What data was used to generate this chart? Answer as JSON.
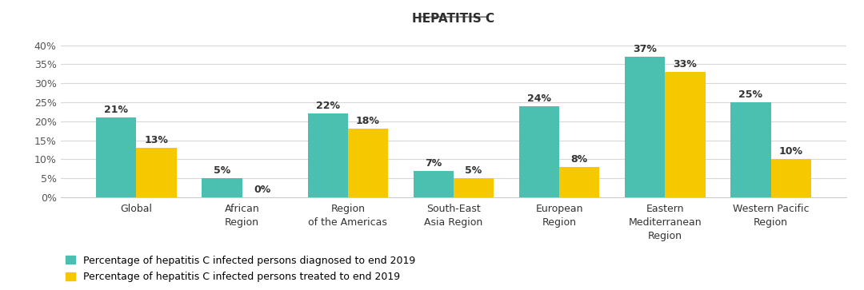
{
  "title": "HEPATITIS C",
  "categories": [
    "Global",
    "African\nRegion",
    "Region\nof the Americas",
    "South-East\nAsia Region",
    "European\nRegion",
    "Eastern\nMediterranean\nRegion",
    "Western Pacific\nRegion"
  ],
  "diagnosed": [
    21,
    5,
    22,
    7,
    24,
    37,
    25
  ],
  "treated": [
    13,
    0,
    18,
    5,
    8,
    33,
    10
  ],
  "color_diagnosed": "#4BBFB0",
  "color_treated": "#F5C800",
  "bar_width": 0.38,
  "ylim": [
    0,
    42
  ],
  "yticks": [
    0,
    5,
    10,
    15,
    20,
    25,
    30,
    35,
    40
  ],
  "ytick_labels": [
    "0%",
    "5%",
    "10%",
    "15%",
    "20%",
    "25%",
    "30%",
    "35%",
    "40%"
  ],
  "legend_diagnosed": "Percentage of hepatitis C infected persons diagnosed to end 2019",
  "legend_treated": "Percentage of hepatitis C infected persons treated to end 2019",
  "background_color": "#ffffff",
  "grid_color": "#d8d8d8",
  "title_fontsize": 11,
  "label_fontsize": 9,
  "tick_fontsize": 9,
  "annotation_fontsize": 9,
  "legend_fontsize": 9
}
